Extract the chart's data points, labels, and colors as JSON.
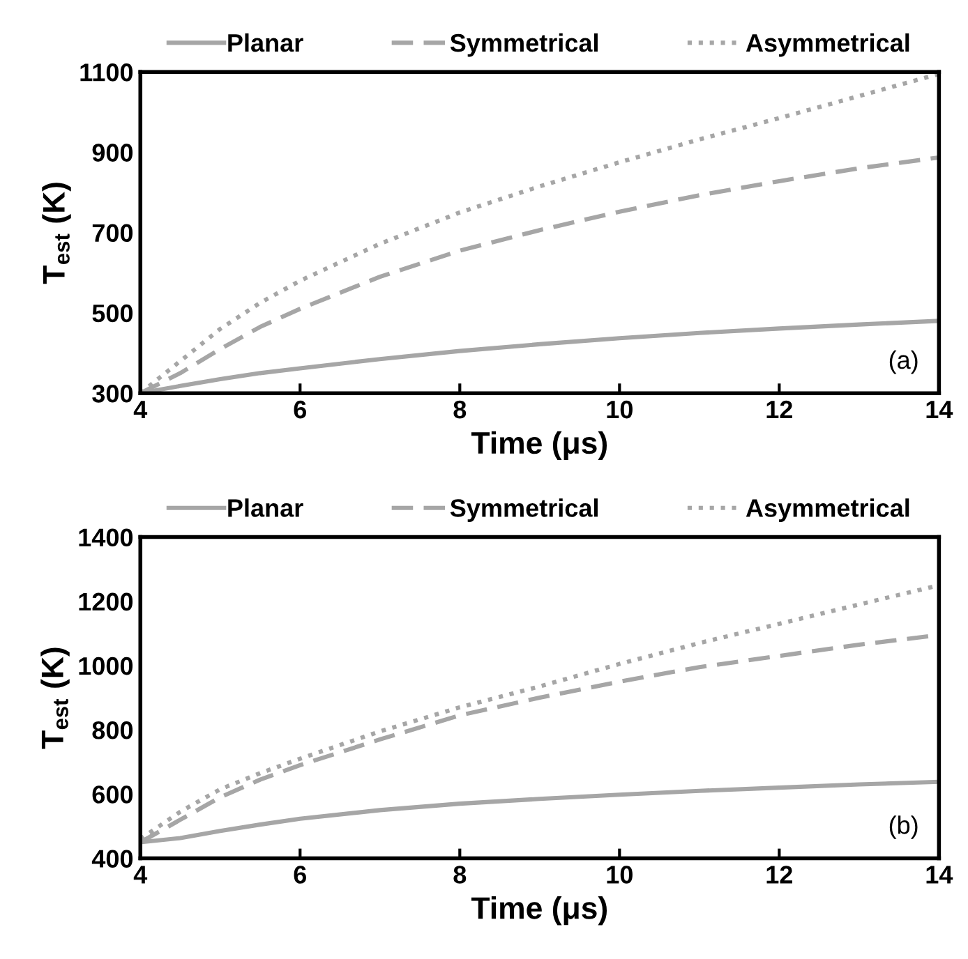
{
  "chart_data": [
    {
      "type": "line",
      "xlabel": "Time (μs)",
      "ylabel": "T$_{est}$ (K)",
      "annotations": [
        "(a)"
      ],
      "legend": "top",
      "grid": false,
      "marker": "none",
      "xlim": [
        4,
        14
      ],
      "xticks": [
        4,
        6,
        8,
        10,
        12,
        14
      ],
      "ylim": [
        300,
        1100
      ],
      "yticks": [
        300,
        500,
        700,
        900,
        1100
      ],
      "x": [
        4,
        4.5,
        5,
        5.5,
        6,
        7,
        8,
        9,
        10,
        11,
        12,
        13,
        14
      ],
      "series": [
        {
          "name": "Planar",
          "color": "#a6a6a6",
          "line_style": "solid",
          "values": [
            300,
            318,
            335,
            350,
            362,
            385,
            405,
            422,
            437,
            450,
            461,
            471,
            480
          ]
        },
        {
          "name": "Symmetrical",
          "color": "#a6a6a6",
          "line_style": "dashed",
          "values": [
            300,
            350,
            410,
            465,
            510,
            590,
            655,
            706,
            752,
            793,
            828,
            860,
            887
          ]
        },
        {
          "name": "Asymmetrical",
          "color": "#a6a6a6",
          "line_style": "dotted",
          "values": [
            300,
            380,
            460,
            525,
            580,
            672,
            750,
            815,
            875,
            932,
            985,
            1040,
            1095
          ]
        }
      ]
    },
    {
      "type": "line",
      "xlabel": "Time (μs)",
      "ylabel": "T$_{est}$ (K)",
      "annotations": [
        "(b)"
      ],
      "legend": "top",
      "grid": false,
      "marker": "none",
      "xlim": [
        4,
        14
      ],
      "xticks": [
        4,
        6,
        8,
        10,
        12,
        14
      ],
      "ylim": [
        400,
        1400
      ],
      "yticks": [
        400,
        600,
        800,
        1000,
        1200,
        1400
      ],
      "x": [
        4,
        4.5,
        5,
        5.5,
        6,
        7,
        8,
        9,
        10,
        11,
        12,
        13,
        14
      ],
      "series": [
        {
          "name": "Planar",
          "color": "#a6a6a6",
          "line_style": "solid",
          "values": [
            450,
            463,
            485,
            505,
            523,
            550,
            570,
            585,
            598,
            610,
            620,
            630,
            638
          ]
        },
        {
          "name": "Symmetrical",
          "color": "#a6a6a6",
          "line_style": "dashed",
          "values": [
            450,
            520,
            590,
            645,
            690,
            770,
            845,
            900,
            950,
            995,
            1030,
            1065,
            1095
          ]
        },
        {
          "name": "Asymmetrical",
          "color": "#a6a6a6",
          "line_style": "dotted",
          "values": [
            460,
            545,
            615,
            665,
            710,
            795,
            870,
            935,
            1005,
            1070,
            1130,
            1190,
            1250
          ]
        }
      ]
    }
  ]
}
